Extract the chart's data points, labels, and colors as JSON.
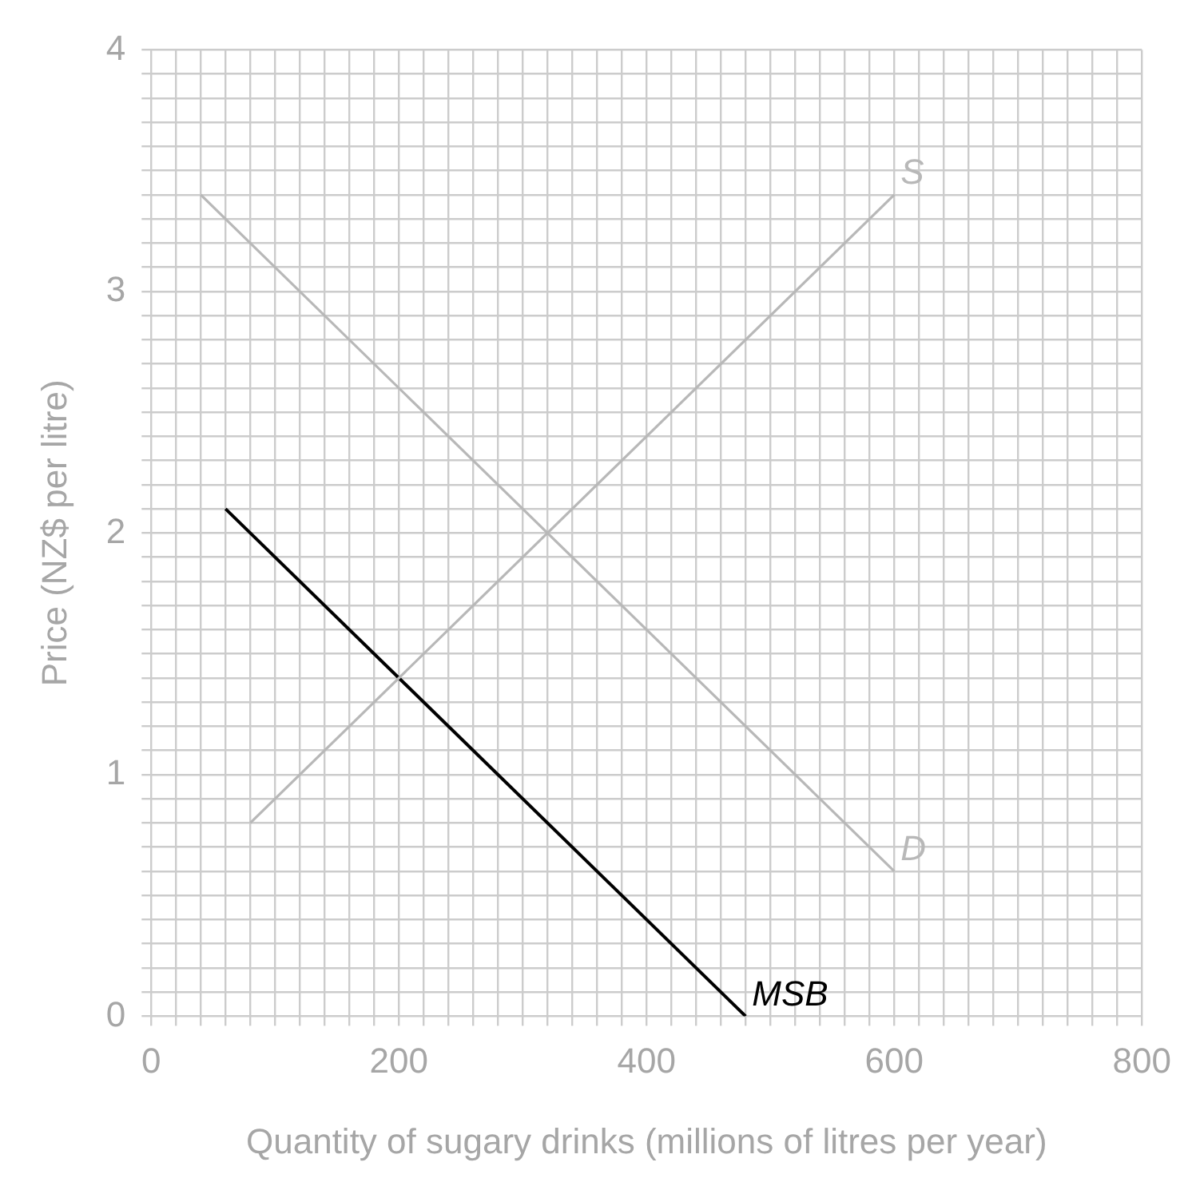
{
  "chart_data": {
    "type": "line",
    "xlabel": "Quantity of sugary drinks (millions of litres per year)",
    "ylabel": "Price (NZ$ per litre)",
    "series": [
      {
        "name": "S",
        "color": "#b8b8b8",
        "x": [
          80,
          600
        ],
        "values": [
          0.8,
          3.4
        ]
      },
      {
        "name": "D",
        "color": "#b8b8b8",
        "x": [
          40,
          600
        ],
        "values": [
          3.4,
          0.6
        ]
      },
      {
        "name": "MSB",
        "color": "#000000",
        "x": [
          60,
          480
        ],
        "values": [
          2.1,
          0
        ]
      }
    ],
    "xlim": [
      0,
      800
    ],
    "xticks": [
      0,
      {
        "value": 20,
        "label": null
      },
      {
        "value": 40,
        "label": null
      },
      {
        "value": 60,
        "label": null
      },
      {
        "value": 80,
        "label": null
      },
      {
        "value": 100,
        "label": null
      },
      {
        "value": 120,
        "label": null
      },
      {
        "value": 140,
        "label": null
      },
      {
        "value": 160,
        "label": null
      },
      {
        "value": 180,
        "label": null
      },
      200,
      {
        "value": 220,
        "label": null
      },
      {
        "value": 240,
        "label": null
      },
      {
        "value": 260,
        "label": null
      },
      {
        "value": 280,
        "label": null
      },
      {
        "value": 300,
        "label": null
      },
      {
        "value": 320,
        "label": null
      },
      {
        "value": 340,
        "label": null
      },
      {
        "value": 360,
        "label": null
      },
      {
        "value": 380,
        "label": null
      },
      400,
      {
        "value": 420,
        "label": null
      },
      {
        "value": 440,
        "label": null
      },
      {
        "value": 460,
        "label": null
      },
      {
        "value": 480,
        "label": null
      },
      {
        "value": 500,
        "label": null
      },
      {
        "value": 520,
        "label": null
      },
      {
        "value": 540,
        "label": null
      },
      {
        "value": 560,
        "label": null
      },
      {
        "value": 580,
        "label": null
      },
      600,
      {
        "value": 620,
        "label": null
      },
      {
        "value": 640,
        "label": null
      },
      {
        "value": 660,
        "label": null
      },
      {
        "value": 680,
        "label": null
      },
      {
        "value": 700,
        "label": null
      },
      {
        "value": 720,
        "label": null
      },
      {
        "value": 740,
        "label": null
      },
      {
        "value": 760,
        "label": null
      },
      {
        "value": 780,
        "label": null
      },
      800
    ],
    "ylim": [
      0,
      4
    ],
    "yticks": [
      0,
      {
        "value": 0.1,
        "label": null
      },
      {
        "value": 0.2,
        "label": null
      },
      {
        "value": 0.3,
        "label": null
      },
      {
        "value": 0.4,
        "label": null
      },
      {
        "value": 0.5,
        "label": null
      },
      {
        "value": 0.6,
        "label": null
      },
      {
        "value": 0.7,
        "label": null
      },
      {
        "value": 0.8,
        "label": null
      },
      {
        "value": 0.9,
        "label": null
      },
      1,
      {
        "value": 1.1,
        "label": null
      },
      {
        "value": 1.2,
        "label": null
      },
      {
        "value": 1.3,
        "label": null
      },
      {
        "value": 1.4,
        "label": null
      },
      {
        "value": 1.5,
        "label": null
      },
      {
        "value": 1.6,
        "label": null
      },
      {
        "value": 1.7,
        "label": null
      },
      {
        "value": 1.8,
        "label": null
      },
      {
        "value": 1.9,
        "label": null
      },
      2,
      {
        "value": 2.1,
        "label": null
      },
      {
        "value": 2.2,
        "label": null
      },
      {
        "value": 2.3,
        "label": null
      },
      {
        "value": 2.4,
        "label": null
      },
      {
        "value": 2.5,
        "label": null
      },
      {
        "value": 2.6,
        "label": null
      },
      {
        "value": 2.7,
        "label": null
      },
      {
        "value": 2.8,
        "label": null
      },
      {
        "value": 2.9,
        "label": null
      },
      3,
      {
        "value": 3.1,
        "label": null
      },
      {
        "value": 3.2,
        "label": null
      },
      {
        "value": 3.3,
        "label": null
      },
      {
        "value": 3.4,
        "label": null
      },
      {
        "value": 3.5,
        "label": null
      },
      {
        "value": 3.6,
        "label": null
      },
      {
        "value": 3.7,
        "label": null
      },
      {
        "value": 3.8,
        "label": null
      },
      {
        "value": 3.9,
        "label": null
      },
      4
    ],
    "grid": true,
    "legend": false,
    "marker": "none",
    "line_style": "solid"
  }
}
